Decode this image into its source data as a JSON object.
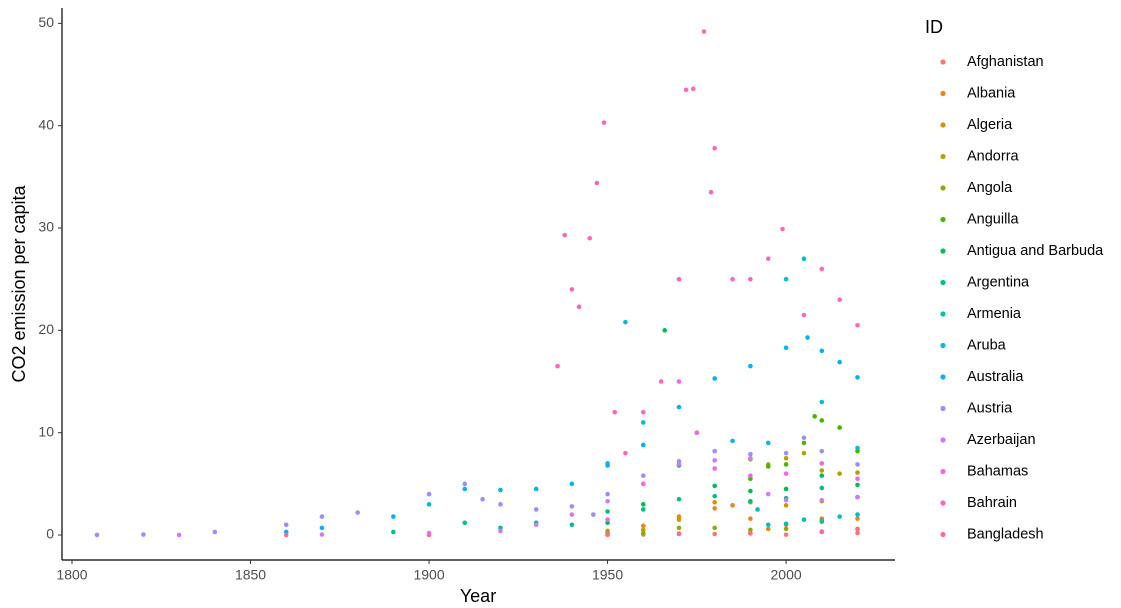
{
  "chart_data": {
    "type": "scatter",
    "xlabel": "Year",
    "ylabel": "CO2 emission per capita",
    "legend_title": "ID",
    "xlim": [
      1797.2,
      2030.5
    ],
    "ylim": [
      -2.44,
      51.5
    ],
    "xticks": [
      1800,
      1850,
      1900,
      1950,
      2000
    ],
    "yticks": [
      0,
      10,
      20,
      30,
      40,
      50
    ],
    "grid": false,
    "legend": "right",
    "series": [
      {
        "name": "Afghanistan",
        "color": "#F8766D",
        "x": [
          1950,
          1960,
          1970,
          1980,
          1990,
          2000,
          2010,
          2020
        ],
        "values": [
          0.01,
          0.05,
          0.15,
          0.1,
          0.2,
          0.04,
          0.3,
          0.2
        ]
      },
      {
        "name": "Albania",
        "color": "#E7851E",
        "x": [
          1950,
          1960,
          1970,
          1980,
          1985,
          1990,
          1995,
          2000,
          2010,
          2020
        ],
        "values": [
          0.2,
          0.9,
          1.8,
          2.6,
          2.9,
          1.6,
          0.6,
          1.0,
          1.6,
          1.6
        ]
      },
      {
        "name": "Algeria",
        "color": "#D09400",
        "x": [
          1950,
          1960,
          1970,
          1980,
          1990,
          2000,
          2010,
          2020
        ],
        "values": [
          0.4,
          0.5,
          1.5,
          3.2,
          3.2,
          2.9,
          3.3,
          3.7
        ]
      },
      {
        "name": "Andorra",
        "color": "#B2A100",
        "x": [
          1990,
          1995,
          2000,
          2005,
          2010,
          2015,
          2020
        ],
        "values": [
          7.4,
          6.9,
          7.5,
          8.0,
          6.3,
          6.0,
          6.1
        ]
      },
      {
        "name": "Angola",
        "color": "#89AC00",
        "x": [
          1950,
          1960,
          1970,
          1980,
          1990,
          2000,
          2010,
          2020
        ],
        "values": [
          0.1,
          0.2,
          0.7,
          0.7,
          0.5,
          0.6,
          1.3,
          0.6
        ]
      },
      {
        "name": "Anguilla",
        "color": "#45B500",
        "x": [
          1990,
          1995,
          2000,
          2005,
          2008,
          2010,
          2015,
          2020
        ],
        "values": [
          5.5,
          6.7,
          6.9,
          9.0,
          11.6,
          11.2,
          10.5,
          8.2
        ]
      },
      {
        "name": "Antigua and Barbuda",
        "color": "#00BC51",
        "x": [
          1950,
          1960,
          1966,
          1970,
          1980,
          1990,
          2000,
          2010,
          2020
        ],
        "values": [
          1.2,
          3.0,
          20,
          6.8,
          4.8,
          4.3,
          4.5,
          5.8,
          4.9
        ]
      },
      {
        "name": "Argentina",
        "color": "#00C087",
        "x": [
          1890,
          1910,
          1920,
          1930,
          1940,
          1950,
          1960,
          1970,
          1980,
          1990,
          2000,
          2010,
          2020
        ],
        "values": [
          0.3,
          1.2,
          0.7,
          1.2,
          1.0,
          2.3,
          2.5,
          3.5,
          3.8,
          3.3,
          3.6,
          4.6,
          3.7
        ]
      },
      {
        "name": "Armenia",
        "color": "#00C0B2",
        "x": [
          1992,
          1995,
          2000,
          2005,
          2010,
          2015,
          2020
        ],
        "values": [
          2.5,
          1.0,
          1.1,
          1.5,
          1.4,
          1.8,
          2.0
        ]
      },
      {
        "name": "Aruba",
        "color": "#00BCD6",
        "x": [
          1950,
          1955,
          1960,
          1975,
          1985,
          1995,
          2000,
          2005,
          2010,
          2020
        ],
        "values": [
          7,
          20.8,
          11,
          10,
          9.2,
          9.0,
          25,
          27,
          13,
          8.5
        ]
      },
      {
        "name": "Australia",
        "color": "#00B3F2",
        "x": [
          1860,
          1870,
          1890,
          1900,
          1910,
          1920,
          1930,
          1940,
          1950,
          1960,
          1970,
          1980,
          1990,
          2000,
          2006,
          2010,
          2015,
          2020
        ],
        "values": [
          0.3,
          0.7,
          1.8,
          3,
          4.5,
          4.4,
          4.5,
          5,
          6.8,
          8.8,
          12.5,
          15.3,
          16.5,
          18.3,
          19.3,
          18,
          16.9,
          15.4
        ]
      },
      {
        "name": "Austria",
        "color": "#9C8DFF",
        "x": [
          1807,
          1820,
          1840,
          1860,
          1870,
          1880,
          1900,
          1910,
          1915,
          1920,
          1930,
          1940,
          1946,
          1950,
          1960,
          1970,
          1980,
          1990,
          2000,
          2005,
          2010,
          2020
        ],
        "values": [
          0.01,
          0.05,
          0.3,
          1.0,
          1.8,
          2.2,
          4.0,
          5.0,
          3.5,
          3.0,
          2.5,
          2.8,
          2,
          4.0,
          5.8,
          7.2,
          8.2,
          7.9,
          8.0,
          9.5,
          8.2,
          6.9
        ]
      },
      {
        "name": "Azerbaijan",
        "color": "#D277FF",
        "x": [
          1830,
          1870,
          1900,
          1920,
          1930,
          1940,
          1950,
          1960,
          1970,
          1980,
          1990,
          1995,
          2000,
          2010,
          2020
        ],
        "values": [
          0,
          0.05,
          0.2,
          0.4,
          1.0,
          2.0,
          3.3,
          5.0,
          6.9,
          7.3,
          7.5,
          4.0,
          3.4,
          3.4,
          3.7
        ]
      },
      {
        "name": "Bahamas",
        "color": "#F166E8",
        "x": [
          1950,
          1960,
          1970,
          1975,
          1980,
          1990,
          2000,
          2010,
          2020
        ],
        "values": [
          1.5,
          5.0,
          15,
          10,
          6.5,
          5.8,
          6.0,
          7.0,
          5.5
        ]
      },
      {
        "name": "Bahrain",
        "color": "#FF65BA",
        "x": [
          1936,
          1938,
          1940,
          1942,
          1945,
          1947,
          1949,
          1952,
          1955,
          1960,
          1965,
          1970,
          1972,
          1974,
          1977,
          1979,
          1980,
          1985,
          1990,
          1995,
          1999,
          2005,
          2010,
          2015,
          2020
        ],
        "values": [
          16.5,
          29.3,
          24,
          22.3,
          29,
          34.4,
          40.3,
          12,
          8,
          12,
          15,
          25,
          43.5,
          43.6,
          49.2,
          33.5,
          37.8,
          25,
          25,
          27,
          29.9,
          21.5,
          26,
          23,
          20.5
        ]
      },
      {
        "name": "Bangladesh",
        "color": "#FF6C91",
        "x": [
          1860,
          1900,
          1950,
          1970,
          1990,
          2010,
          2020
        ],
        "values": [
          0,
          0,
          0.05,
          0.1,
          0.15,
          0.35,
          0.55
        ]
      }
    ]
  }
}
